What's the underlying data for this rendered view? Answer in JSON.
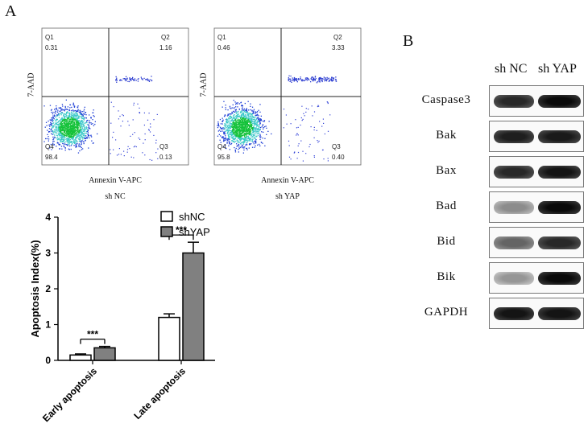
{
  "panel_a_label": "A",
  "panel_b_label": "B",
  "flow": [
    {
      "sample": "sh NC",
      "xlabel": "Annexin V-APC",
      "ylabel": "7-AAD",
      "quadrants": [
        {
          "name": "Q1",
          "value": "0.31"
        },
        {
          "name": "Q2",
          "value": "1.16"
        },
        {
          "name": "Q3",
          "value": "0.13"
        },
        {
          "name": "Q4",
          "value": "98.4"
        }
      ]
    },
    {
      "sample": "sh YAP",
      "xlabel": "Annexin V-APC",
      "ylabel": "7-AAD",
      "quadrants": [
        {
          "name": "Q1",
          "value": "0.46"
        },
        {
          "name": "Q2",
          "value": "3.33"
        },
        {
          "name": "Q3",
          "value": "0.40"
        },
        {
          "name": "Q4",
          "value": "95.8"
        }
      ]
    }
  ],
  "chart_data": {
    "type": "bar",
    "categories": [
      "Early apoptosis",
      "Late apoptosis"
    ],
    "series": [
      {
        "name": "shNC",
        "values": [
          0.15,
          1.2
        ],
        "errors": [
          0.03,
          0.1
        ],
        "color": "#ffffff"
      },
      {
        "name": "shYAP",
        "values": [
          0.35,
          3.0
        ],
        "errors": [
          0.04,
          0.3
        ],
        "color": "#808080"
      }
    ],
    "ylabel": "Apoptosis Index(%)",
    "ylim": [
      0,
      4
    ],
    "yticks": [
      "0",
      "1",
      "2",
      "3",
      "4"
    ],
    "significance": [
      "***",
      "***"
    ],
    "legend_position": "top-right"
  },
  "blot": {
    "columns": [
      "sh NC",
      "sh YAP"
    ],
    "proteins": [
      {
        "label": "Caspase3",
        "intensity": [
          0.85,
          1.0
        ]
      },
      {
        "label": "Bak",
        "intensity": [
          0.9,
          0.92
        ]
      },
      {
        "label": "Bax",
        "intensity": [
          0.85,
          0.95
        ]
      },
      {
        "label": "Bad",
        "intensity": [
          0.35,
          1.0
        ]
      },
      {
        "label": "Bid",
        "intensity": [
          0.55,
          0.85
        ]
      },
      {
        "label": "Bik",
        "intensity": [
          0.3,
          1.0
        ]
      },
      {
        "label": "GAPDH",
        "intensity": [
          0.95,
          0.95
        ]
      }
    ]
  }
}
